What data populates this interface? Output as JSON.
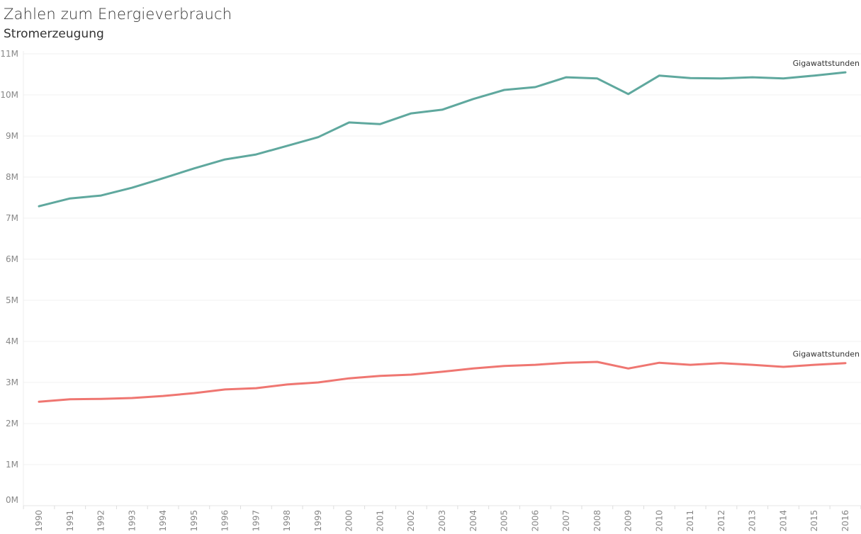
{
  "chart_data": {
    "type": "line",
    "title": "Zahlen  zum Energieverbrauch",
    "subtitle": "Stromerzeugung",
    "xlabel": "",
    "ylabel": "",
    "ylim": [
      0,
      11000000
    ],
    "y_ticks": [
      "0M",
      "1M",
      "2M",
      "3M",
      "4M",
      "5M",
      "6M",
      "7M",
      "8M",
      "9M",
      "10M",
      "11M"
    ],
    "grid": true,
    "x": [
      "1990",
      "1991",
      "1992",
      "1993",
      "1994",
      "1995",
      "1996",
      "1997",
      "1998",
      "1999",
      "2000",
      "2001",
      "2002",
      "2003",
      "2004",
      "2005",
      "2006",
      "2007",
      "2008",
      "2009",
      "2010",
      "2011",
      "2012",
      "2013",
      "2014",
      "2015",
      "2016"
    ],
    "series": [
      {
        "name": "Gigawattstunden",
        "color": "#5fa89e",
        "values": [
          7290000,
          7480000,
          7550000,
          7740000,
          7970000,
          8210000,
          8430000,
          8550000,
          8760000,
          8970000,
          9330000,
          9290000,
          9550000,
          9640000,
          9900000,
          10120000,
          10190000,
          10430000,
          10400000,
          10020000,
          10470000,
          10410000,
          10400000,
          10430000,
          10400000,
          10470000,
          10550000
        ]
      },
      {
        "name": "Gigawattstunden",
        "color": "#ef7671",
        "values": [
          2530000,
          2590000,
          2600000,
          2620000,
          2670000,
          2740000,
          2830000,
          2860000,
          2950000,
          3000000,
          3100000,
          3160000,
          3190000,
          3260000,
          3340000,
          3400000,
          3430000,
          3480000,
          3500000,
          3340000,
          3480000,
          3430000,
          3470000,
          3430000,
          3380000,
          3430000,
          3470000
        ]
      }
    ]
  }
}
